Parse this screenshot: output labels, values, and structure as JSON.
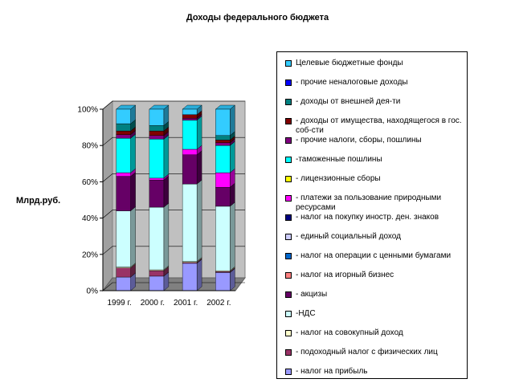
{
  "chart_data": {
    "type": "bar",
    "stacked": true,
    "percent": true,
    "three_d": true,
    "title": "Доходы федерального бюджета",
    "ylabel": "Млрд.руб.",
    "xlabel": "",
    "categories": [
      "1999 г.",
      "2000 г.",
      "2001 г.",
      "2002 г."
    ],
    "y_ticks": [
      "0%",
      "20%",
      "40%",
      "60%",
      "80%",
      "100%"
    ],
    "ylim": [
      0,
      100
    ],
    "grid": true,
    "legend_position": "right",
    "series": [
      {
        "name": "- налог на прибыль",
        "color": "#9999FF",
        "values": [
          7.5,
          8,
          15,
          10
        ]
      },
      {
        "name": "- подоходный налог с физических лиц",
        "color": "#993366",
        "values": [
          5,
          3,
          0.5,
          0.5
        ]
      },
      {
        "name": "- налог на совокупный доход",
        "color": "#FFFFCC",
        "values": [
          0.5,
          0.5,
          0.5,
          0.5
        ]
      },
      {
        "name": "-НДС",
        "color": "#CCFFFF",
        "values": [
          31,
          34.5,
          42.5,
          35.5
        ]
      },
      {
        "name": "- акцизы",
        "color": "#660066",
        "values": [
          19,
          15,
          16,
          10.5
        ]
      },
      {
        "name": "- налог на игорный бизнес",
        "color": "#FF8080",
        "values": [
          0,
          0,
          0,
          0
        ]
      },
      {
        "name": "- налог на операции с ценными бумагами",
        "color": "#0066CC",
        "values": [
          0,
          0,
          0,
          0
        ]
      },
      {
        "name": "- единый социальный доход",
        "color": "#CCCCFF",
        "values": [
          0,
          0,
          0,
          0
        ]
      },
      {
        "name": "- налог на покупку иностр. ден. знаков",
        "color": "#000080",
        "values": [
          0,
          0,
          0,
          0
        ]
      },
      {
        "name": "- платежи за пользование природными ресурсами",
        "color": "#FF00FF",
        "values": [
          2,
          1,
          3,
          8
        ]
      },
      {
        "name": "- лицензионные сборы",
        "color": "#FFFF00",
        "values": [
          0,
          0,
          0,
          0
        ]
      },
      {
        "name": "-таможенные пошлины",
        "color": "#00FFFF",
        "values": [
          19,
          21.5,
          16,
          15
        ]
      },
      {
        "name": "- прочие налоги, сборы, пошлины",
        "color": "#800080",
        "values": [
          2,
          2,
          1,
          1.5
        ]
      },
      {
        "name": "- доходы от имущества, находящегося в гос. соб-сти",
        "color": "#800000",
        "values": [
          2,
          2.5,
          2,
          1.5
        ]
      },
      {
        "name": "- доходы от внешней дея-ти",
        "color": "#008080",
        "values": [
          4,
          3,
          0,
          2.5
        ]
      },
      {
        "name": "- прочие неналоговые доходы",
        "color": "#0000FF",
        "values": [
          0,
          0,
          0,
          0
        ]
      },
      {
        "name": "Целевые бюджетные фонды",
        "color": "#33CCFF",
        "values": [
          8,
          9,
          3,
          14.5
        ]
      }
    ]
  }
}
